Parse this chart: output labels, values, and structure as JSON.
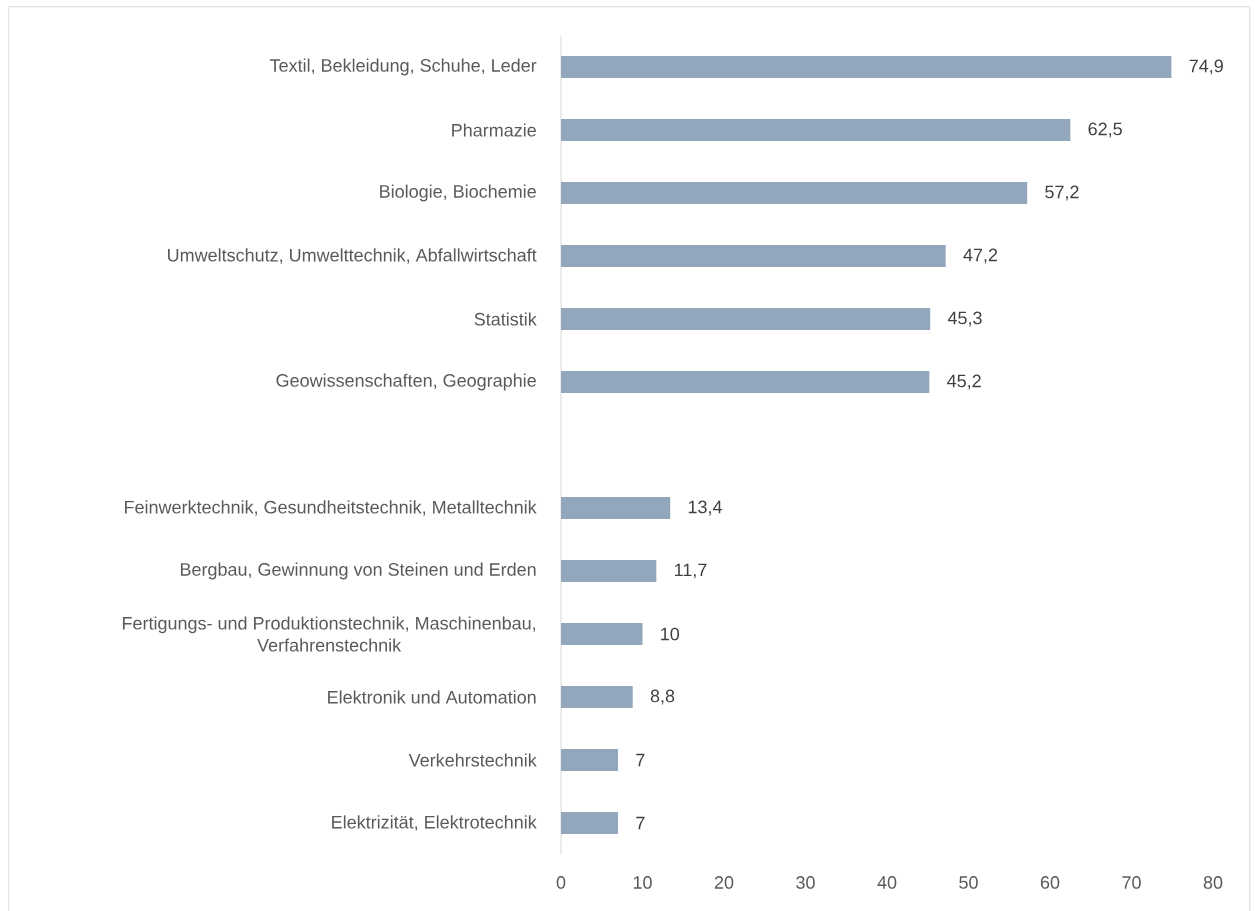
{
  "chart_data": {
    "type": "bar",
    "orientation": "horizontal",
    "categories": [
      "Textil, Bekleidung, Schuhe, Leder",
      "Pharmazie",
      "Biologie, Biochemie",
      "Umweltschutz, Umwelttechnik, Abfallwirtschaft",
      "Statistik",
      "Geowissenschaften, Geographie",
      null,
      "Feinwerktechnik, Gesundheitstechnik, Metalltechnik",
      "Bergbau, Gewinnung von Steinen und Erden",
      "Fertigungs- und Produktionstechnik, Maschinenbau, Verfahrenstechnik",
      "Elektronik und Automation",
      "Verkehrstechnik",
      "Elektrizität, Elektrotechnik"
    ],
    "values": [
      74.9,
      62.5,
      57.2,
      47.2,
      45.3,
      45.2,
      null,
      13.4,
      11.7,
      10,
      8.8,
      7,
      7
    ],
    "value_labels": [
      "74,9",
      "62,5",
      "57,2",
      "47,2",
      "45,3",
      "45,2",
      null,
      "13,4",
      "11,7",
      "10",
      "8,8",
      "7",
      "7"
    ],
    "color": "#93a7bc",
    "xlim": [
      0,
      80
    ],
    "xticks": [
      0,
      10,
      20,
      30,
      40,
      50,
      60,
      70,
      80
    ]
  }
}
